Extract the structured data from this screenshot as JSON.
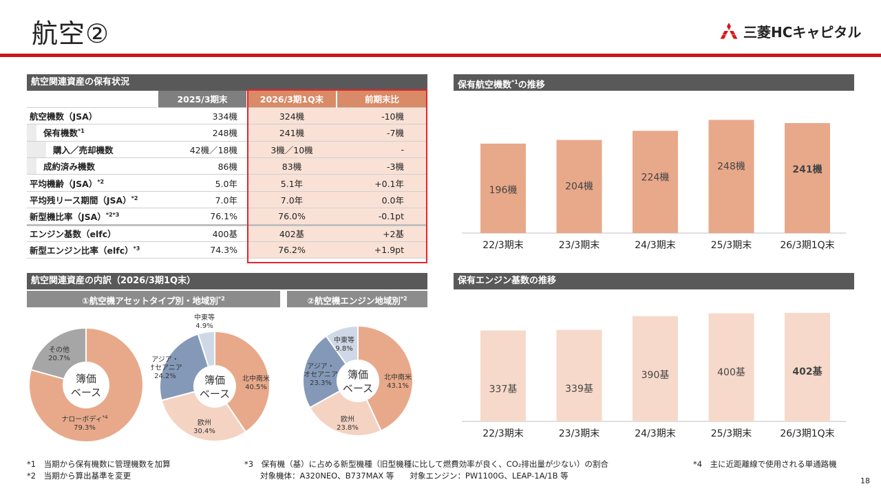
{
  "header": {
    "title": "航空②",
    "logo_text": "三菱HCキャピタル"
  },
  "assets_table": {
    "section_title": "航空関連資産の保有状況",
    "columns": [
      "2025/3期末",
      "2026/3期1Q末",
      "前期末比"
    ],
    "rows": [
      {
        "label": "航空機数（JSA）",
        "sup": "",
        "values": [
          "334機",
          "324機",
          "-10機"
        ]
      },
      {
        "label": "保有機数",
        "sup": "*1",
        "values": [
          "248機",
          "241機",
          "-7機"
        ]
      },
      {
        "label": "購入／売却機数",
        "sup": "",
        "values": [
          "42機／18機",
          "3機／10機",
          "-"
        ]
      },
      {
        "label": "成約済み機数",
        "sup": "",
        "values": [
          "86機",
          "83機",
          "-3機"
        ]
      },
      {
        "label": "平均機齢（JSA）",
        "sup": "*2",
        "values": [
          "5.0年",
          "5.1年",
          "+0.1年"
        ]
      },
      {
        "label": "平均残リース期間（JSA）",
        "sup": "*2",
        "values": [
          "7.0年",
          "7.0年",
          "0.0年"
        ]
      },
      {
        "label": "新型機比率（JSA）",
        "sup": "*2*3",
        "values": [
          "76.1%",
          "76.0%",
          "-0.1pt"
        ]
      },
      {
        "label": "エンジン基数（elfc）",
        "sup": "",
        "values": [
          "400基",
          "402基",
          "+2基"
        ]
      },
      {
        "label": "新型エンジン比率（elfc）",
        "sup": "*3",
        "values": [
          "74.3%",
          "76.2%",
          "+1.9pt"
        ]
      }
    ]
  },
  "breakdown": {
    "section_title": "航空関連資産の内訳（2026/3期1Q末）",
    "sub1_title": "①航空機アセットタイプ別・地域別",
    "sub1_sup": "*2",
    "sub2_title": "②航空機エンジン地域別",
    "sub2_sup": "*2",
    "center_line1": "簿価",
    "center_line2": "ベース"
  },
  "chart_data": [
    {
      "type": "pie",
      "title": "",
      "slices": [
        {
          "name": "ナローボディ",
          "sup": "*4",
          "value": 79.3,
          "label": "79.3%",
          "color": "#e8a98a"
        },
        {
          "name": "その他",
          "sup": "",
          "value": 20.7,
          "label": "20.7%",
          "color": "#a6a6a6"
        }
      ]
    },
    {
      "type": "pie",
      "title": "",
      "slices": [
        {
          "name": "北中南米",
          "value": 40.5,
          "label": "40.5%",
          "color": "#e8a98a"
        },
        {
          "name": "欧州",
          "value": 30.4,
          "label": "30.4%",
          "color": "#f4d3c3"
        },
        {
          "name": "アジア・オセアニア",
          "value": 24.2,
          "label": "24.2%",
          "color": "#8499b8"
        },
        {
          "name": "中東等",
          "value": 4.9,
          "label": "4.9%",
          "color": "#cfd8e6"
        }
      ]
    },
    {
      "type": "pie",
      "title": "",
      "slices": [
        {
          "name": "北中南米",
          "value": 43.1,
          "label": "43.1%",
          "color": "#e8a98a"
        },
        {
          "name": "欧州",
          "value": 23.8,
          "label": "23.8%",
          "color": "#f4d3c3"
        },
        {
          "name": "アジア・オセアニア",
          "value": 23.3,
          "label": "23.3%",
          "color": "#8499b8"
        },
        {
          "name": "中東等",
          "value": 9.8,
          "label": "9.8%",
          "color": "#cfd8e6"
        }
      ]
    },
    {
      "type": "bar",
      "title": "保有航空機数の推移",
      "title_sup": "*1",
      "categories": [
        "22/3期末",
        "23/3期末",
        "24/3期末",
        "25/3期末",
        "26/3期1Q末"
      ],
      "values": [
        196,
        204,
        224,
        248,
        241
      ],
      "labels": [
        "196機",
        "204機",
        "224機",
        "248機",
        "241機"
      ],
      "bar_color": "#e8a98a",
      "ylim": [
        0,
        260
      ]
    },
    {
      "type": "bar",
      "title": "保有エンジン基数の推移",
      "title_sup": "",
      "categories": [
        "22/3期末",
        "23/3期末",
        "24/3期末",
        "25/3期末",
        "26/3期1Q末"
      ],
      "values": [
        337,
        339,
        390,
        400,
        402
      ],
      "labels": [
        "337基",
        "339基",
        "390基",
        "400基",
        "402基"
      ],
      "bar_color": "#f6d9ca",
      "ylim": [
        0,
        420
      ]
    }
  ],
  "footnotes": {
    "n1": "*1　当期から保有機数に管理機数を加算",
    "n2": "*2　当期から算出基準を変更",
    "n3a": "*3　保有機（基）に占める新型機種（旧型機種に比して燃費効率が良く、CO₂排出量が少ない）の割合",
    "n3b": "対象機体：A320NEO、B737MAX 等　　対象エンジン：PW1100G、LEAP-1A/1B 等",
    "n4": "*4　主に近距離線で使用される単通路機"
  },
  "page_number": "18"
}
